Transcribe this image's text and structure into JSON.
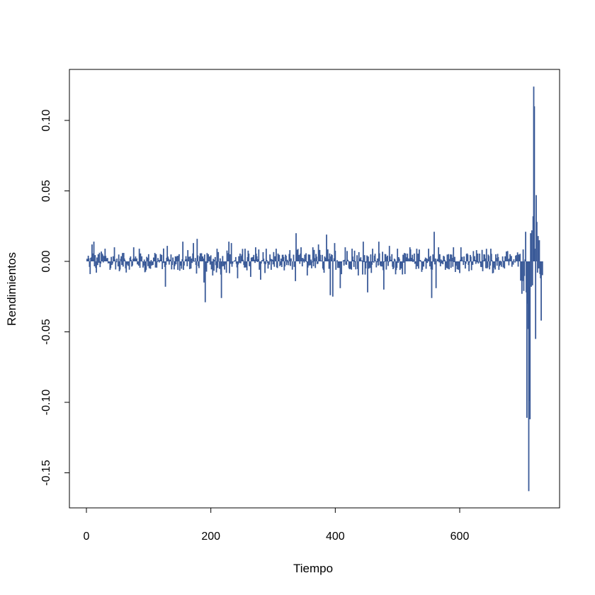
{
  "chart_data": {
    "type": "line",
    "plot_style": "vertical-bars (histogram-like)",
    "title": "",
    "xlabel": "Tiempo",
    "ylabel": "Rendimientos",
    "xlim": [
      0,
      733
    ],
    "ylim": [
      -0.163,
      0.125
    ],
    "x_ticks": [
      0,
      200,
      400,
      600
    ],
    "x_tick_labels": [
      "0",
      "200",
      "400",
      "600"
    ],
    "y_ticks": [
      -0.15,
      -0.1,
      -0.05,
      0.0,
      0.05,
      0.1
    ],
    "y_tick_labels": [
      "-0.15",
      "-0.10",
      "-0.05",
      "0.00",
      "0.05",
      "0.10"
    ],
    "grid": false,
    "legend": "none",
    "color": "#3a5a98",
    "series": [
      {
        "description": "Daily returns: small amplitude (about ±0.02) for t = 1–695, extreme volatility for t = 700–733",
        "points": [
          {
            "x": 3,
            "y": 0.004
          },
          {
            "x": 6,
            "y": -0.009
          },
          {
            "x": 9,
            "y": 0.012
          },
          {
            "x": 12,
            "y": 0.014
          },
          {
            "x": 16,
            "y": -0.008
          },
          {
            "x": 24,
            "y": 0.007
          },
          {
            "x": 30,
            "y": 0.009
          },
          {
            "x": 38,
            "y": -0.006
          },
          {
            "x": 45,
            "y": 0.01
          },
          {
            "x": 53,
            "y": -0.007
          },
          {
            "x": 60,
            "y": 0.006
          },
          {
            "x": 76,
            "y": 0.01
          },
          {
            "x": 85,
            "y": 0.009
          },
          {
            "x": 96,
            "y": -0.006
          },
          {
            "x": 110,
            "y": 0.006
          },
          {
            "x": 127,
            "y": -0.018
          },
          {
            "x": 130,
            "y": 0.011
          },
          {
            "x": 147,
            "y": -0.006
          },
          {
            "x": 155,
            "y": 0.014
          },
          {
            "x": 163,
            "y": 0.008
          },
          {
            "x": 172,
            "y": 0.013
          },
          {
            "x": 178,
            "y": 0.016
          },
          {
            "x": 189,
            "y": -0.015
          },
          {
            "x": 191,
            "y": -0.029
          },
          {
            "x": 203,
            "y": -0.01
          },
          {
            "x": 210,
            "y": 0.009
          },
          {
            "x": 217,
            "y": -0.026
          },
          {
            "x": 229,
            "y": 0.014
          },
          {
            "x": 233,
            "y": 0.013
          },
          {
            "x": 243,
            "y": -0.012
          },
          {
            "x": 255,
            "y": 0.009
          },
          {
            "x": 264,
            "y": -0.011
          },
          {
            "x": 272,
            "y": 0.01
          },
          {
            "x": 280,
            "y": -0.013
          },
          {
            "x": 289,
            "y": 0.009
          },
          {
            "x": 297,
            "y": -0.006
          },
          {
            "x": 305,
            "y": 0.009
          },
          {
            "x": 314,
            "y": -0.004
          },
          {
            "x": 327,
            "y": 0.008
          },
          {
            "x": 336,
            "y": -0.014
          },
          {
            "x": 337,
            "y": 0.02
          },
          {
            "x": 345,
            "y": 0.01
          },
          {
            "x": 355,
            "y": -0.01
          },
          {
            "x": 364,
            "y": 0.01
          },
          {
            "x": 373,
            "y": 0.012
          },
          {
            "x": 381,
            "y": -0.006
          },
          {
            "x": 386,
            "y": 0.019
          },
          {
            "x": 392,
            "y": -0.024
          },
          {
            "x": 396,
            "y": -0.025
          },
          {
            "x": 399,
            "y": 0.013
          },
          {
            "x": 408,
            "y": -0.019
          },
          {
            "x": 416,
            "y": 0.01
          },
          {
            "x": 427,
            "y": 0.009
          },
          {
            "x": 437,
            "y": -0.01
          },
          {
            "x": 445,
            "y": 0.014
          },
          {
            "x": 452,
            "y": -0.022
          },
          {
            "x": 460,
            "y": 0.009
          },
          {
            "x": 470,
            "y": 0.014
          },
          {
            "x": 478,
            "y": -0.02
          },
          {
            "x": 487,
            "y": 0.011
          },
          {
            "x": 500,
            "y": 0.009
          },
          {
            "x": 512,
            "y": -0.009
          },
          {
            "x": 520,
            "y": 0.01
          },
          {
            "x": 531,
            "y": 0.009
          },
          {
            "x": 540,
            "y": -0.006
          },
          {
            "x": 550,
            "y": 0.009
          },
          {
            "x": 555,
            "y": -0.026
          },
          {
            "x": 559,
            "y": 0.021
          },
          {
            "x": 562,
            "y": -0.019
          },
          {
            "x": 566,
            "y": 0.01
          },
          {
            "x": 577,
            "y": -0.006
          },
          {
            "x": 590,
            "y": 0.01
          },
          {
            "x": 602,
            "y": 0.01
          },
          {
            "x": 615,
            "y": -0.007
          },
          {
            "x": 627,
            "y": 0.008
          },
          {
            "x": 637,
            "y": -0.007
          },
          {
            "x": 650,
            "y": 0.009
          },
          {
            "x": 663,
            "y": -0.006
          },
          {
            "x": 675,
            "y": 0.007
          },
          {
            "x": 690,
            "y": 0.004
          },
          {
            "x": 700,
            "y": -0.023
          },
          {
            "x": 703,
            "y": -0.021
          },
          {
            "x": 706,
            "y": 0.021
          },
          {
            "x": 707,
            "y": -0.022
          },
          {
            "x": 708,
            "y": -0.111
          },
          {
            "x": 709,
            "y": -0.03
          },
          {
            "x": 710,
            "y": -0.048
          },
          {
            "x": 711,
            "y": -0.163
          },
          {
            "x": 712,
            "y": -0.099
          },
          {
            "x": 713,
            "y": -0.112
          },
          {
            "x": 714,
            "y": 0.02
          },
          {
            "x": 715,
            "y": -0.018
          },
          {
            "x": 716,
            "y": 0.022
          },
          {
            "x": 717,
            "y": -0.017
          },
          {
            "x": 718,
            "y": 0.032
          },
          {
            "x": 719,
            "y": 0.124
          },
          {
            "x": 720,
            "y": 0.11
          },
          {
            "x": 721,
            "y": 0.009
          },
          {
            "x": 722,
            "y": -0.055
          },
          {
            "x": 723,
            "y": 0.047
          },
          {
            "x": 724,
            "y": 0.028
          },
          {
            "x": 725,
            "y": -0.008
          },
          {
            "x": 726,
            "y": 0.018
          },
          {
            "x": 727,
            "y": -0.005
          },
          {
            "x": 728,
            "y": 0.015
          },
          {
            "x": 729,
            "y": -0.009
          },
          {
            "x": 730,
            "y": -0.012
          },
          {
            "x": 731,
            "y": -0.042
          },
          {
            "x": 732,
            "y": 0.0
          }
        ]
      }
    ]
  }
}
